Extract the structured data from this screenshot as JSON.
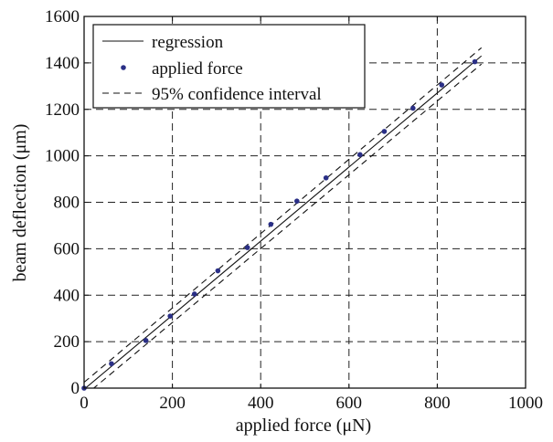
{
  "chart_data": {
    "type": "scatter",
    "title": "",
    "xlabel": "applied force (μN)",
    "ylabel": "beam deflection (μm)",
    "xlim": [
      0,
      1000
    ],
    "ylim": [
      0,
      1600
    ],
    "x_ticks": [
      0,
      200,
      400,
      600,
      800,
      1000
    ],
    "y_ticks": [
      0,
      200,
      400,
      600,
      800,
      1000,
      1200,
      1400,
      1600
    ],
    "grid": true,
    "legend_position": "top-left",
    "colors": {
      "points": "#2a2f86",
      "lines": "#111111",
      "grid": "#222222"
    },
    "series": [
      {
        "name": "regression",
        "kind": "line",
        "x": [
          0,
          900
        ],
        "y": [
          -5,
          1430
        ]
      },
      {
        "name": "applied force",
        "kind": "scatter",
        "x": [
          0,
          62,
          140,
          195,
          250,
          303,
          370,
          423,
          482,
          548,
          625,
          680,
          745,
          810,
          885
        ],
        "y": [
          0,
          105,
          205,
          310,
          405,
          505,
          605,
          705,
          805,
          905,
          1005,
          1105,
          1205,
          1305,
          1405
        ]
      },
      {
        "name": "95% confidence interval",
        "kind": "band",
        "x": [
          0,
          900
        ],
        "upper": [
          25,
          1465
        ],
        "lower": [
          -35,
          1395
        ]
      }
    ],
    "legend_entries": [
      {
        "label": "regression",
        "style": "solid"
      },
      {
        "label": "applied force",
        "style": "marker"
      },
      {
        "label": "95% confidence interval",
        "style": "dashed"
      }
    ]
  }
}
